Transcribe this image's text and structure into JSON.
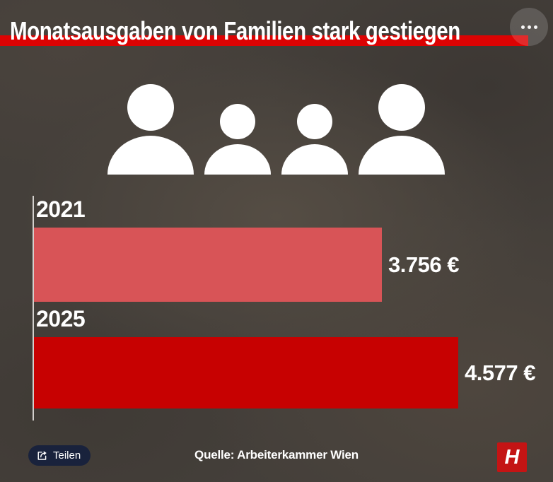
{
  "header": {
    "title": "Monatsausgaben von Familien stark gestiegen",
    "banner_color": "#dc0303",
    "menu_icon": "ellipsis-icon"
  },
  "icons": {
    "family": [
      "adult",
      "child",
      "child",
      "adult"
    ],
    "color": "#ffffff"
  },
  "chart_data": {
    "type": "bar",
    "orientation": "horizontal",
    "categories": [
      "2021",
      "2025"
    ],
    "values": [
      3756,
      4577
    ],
    "value_labels": [
      "3.756 €",
      "4.577 €"
    ],
    "bar_colors": [
      "#d85457",
      "#c70101"
    ],
    "xlim": [
      0,
      4577
    ],
    "grid": false,
    "legend": false,
    "title": "Monatsausgaben von Familien stark gestiegen",
    "source": "Quelle: Arbeiterkammer Wien"
  },
  "footer": {
    "share_label": "Teilen",
    "share_icon": "share-icon",
    "source": "Quelle: Arbeiterkammer Wien",
    "logo_letter": "H",
    "logo_color": "#c41414"
  }
}
